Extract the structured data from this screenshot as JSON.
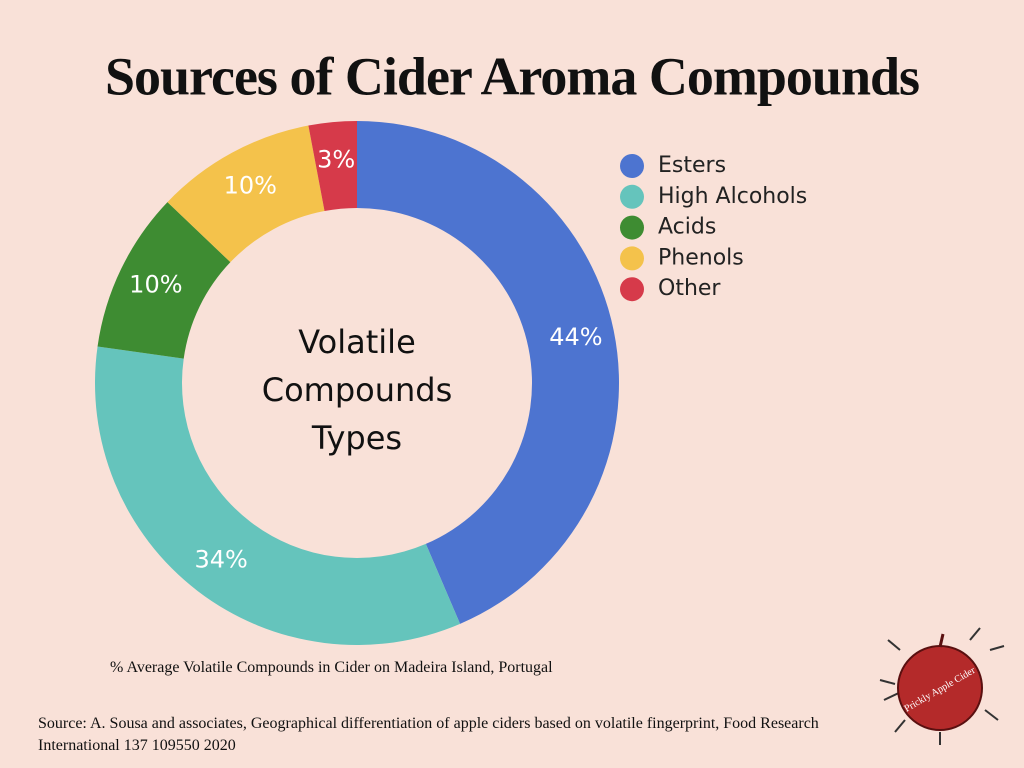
{
  "chart_data": {
    "type": "donut",
    "title": "Sources of Cider Aroma Compounds",
    "center_label": "Volatile Compounds Types",
    "categories": [
      "Esters",
      "High Alcohols",
      "Acids",
      "Phenols",
      "Other"
    ],
    "values": [
      44,
      34,
      10,
      10,
      3
    ],
    "value_labels": [
      "44%",
      "34%",
      "10%",
      "10%",
      "3%"
    ],
    "colors": [
      "#4d74d0",
      "#65c4bc",
      "#3e8c32",
      "#f4c24b",
      "#d63a4a"
    ],
    "legend": "right",
    "note": "% Average Volatile Compounds in Cider on Madeira Island, Portugal",
    "source": "Source: A. Sousa and associates, Geographical differentiation of apple ciders based on volatile fingerprint, Food Research International 137  109550 2020",
    "logo": "Prickly Apple Cider"
  }
}
